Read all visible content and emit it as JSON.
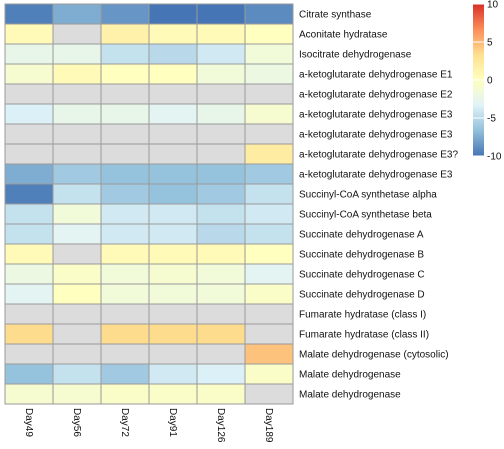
{
  "chart_data": {
    "type": "heatmap",
    "title": "",
    "xlabel": "",
    "ylabel": "",
    "columns": [
      "Day49",
      "Day56",
      "Day72",
      "Day91",
      "Day126",
      "Day189"
    ],
    "rows": [
      "Citrate synthase",
      "Aconitate hydratase",
      "Isocitrate dehydrogenase",
      "a-ketoglutarate dehydrogenase E1",
      "a-ketoglutarate dehydrogenase E2",
      "a-ketoglutarate dehydrogenase E3",
      "a-ketoglutarate dehydrogenase E3",
      "a-ketoglutarate dehydrogenase E3?",
      "a-ketoglutarate dehydrogenase E3",
      "Succinyl-CoA synthetase alpha",
      "Succinyl-CoA synthetase beta",
      "Succinate dehydrogenase A",
      "Succinate dehydrogenase B",
      "Succinate dehydrogenase C",
      "Succinate dehydrogenase D",
      "Fumarate hydratase (class I)",
      "Fumarate hydratase (class II)",
      "Malate dehydrogenase (cytosolic)",
      "Malate dehydrogenase",
      "Malate dehydrogenase"
    ],
    "values": [
      [
        -9.5,
        -7.5,
        -8.5,
        -10.0,
        -10.0,
        -9.0
      ],
      [
        0.5,
        null,
        1.5,
        0.5,
        0.5,
        0.0
      ],
      [
        -2.5,
        -2.5,
        -4.5,
        -5.0,
        -4.0,
        -1.5
      ],
      [
        -1.0,
        0.5,
        0.0,
        0.0,
        -1.5,
        -2.0
      ],
      [
        null,
        null,
        null,
        null,
        null,
        null
      ],
      [
        -3.5,
        -2.5,
        -2.5,
        -3.0,
        -2.5,
        -1.0
      ],
      [
        null,
        null,
        null,
        null,
        null,
        null
      ],
      [
        null,
        null,
        null,
        null,
        null,
        2.0
      ],
      [
        -7.5,
        -6.0,
        -6.5,
        -6.5,
        -6.5,
        -6.0
      ],
      [
        -9.5,
        -4.5,
        -6.0,
        -6.5,
        -6.0,
        -4.5
      ],
      [
        -4.5,
        -1.5,
        -4.0,
        -4.0,
        -4.5,
        -4.0
      ],
      [
        -4.5,
        -3.0,
        -4.0,
        -4.0,
        -5.0,
        -4.5
      ],
      [
        0.5,
        null,
        0.5,
        0.5,
        0.5,
        0.0
      ],
      [
        -2.0,
        -0.5,
        -1.5,
        -1.0,
        -1.5,
        -3.0
      ],
      [
        -3.0,
        0.0,
        -1.5,
        -1.5,
        -1.5,
        -0.5
      ],
      [
        null,
        null,
        null,
        null,
        null,
        null
      ],
      [
        3.5,
        null,
        3.5,
        3.5,
        3.5,
        null
      ],
      [
        null,
        null,
        null,
        null,
        null,
        4.5
      ],
      [
        -6.5,
        -4.5,
        -6.0,
        -4.0,
        -3.5,
        -0.5
      ],
      [
        -1.0,
        -1.0,
        -0.5,
        -0.5,
        -0.5,
        null
      ]
    ],
    "missing_color": "#dcdcdc",
    "legend": {
      "position": "right",
      "min": -10,
      "max": 10,
      "ticks": [
        10,
        5,
        0,
        -5,
        -10
      ],
      "colors": [
        "#d73027",
        "#fc8d59",
        "#fee090",
        "#ffffbf",
        "#e0f3f8",
        "#91bfdb",
        "#4575b4"
      ]
    }
  }
}
